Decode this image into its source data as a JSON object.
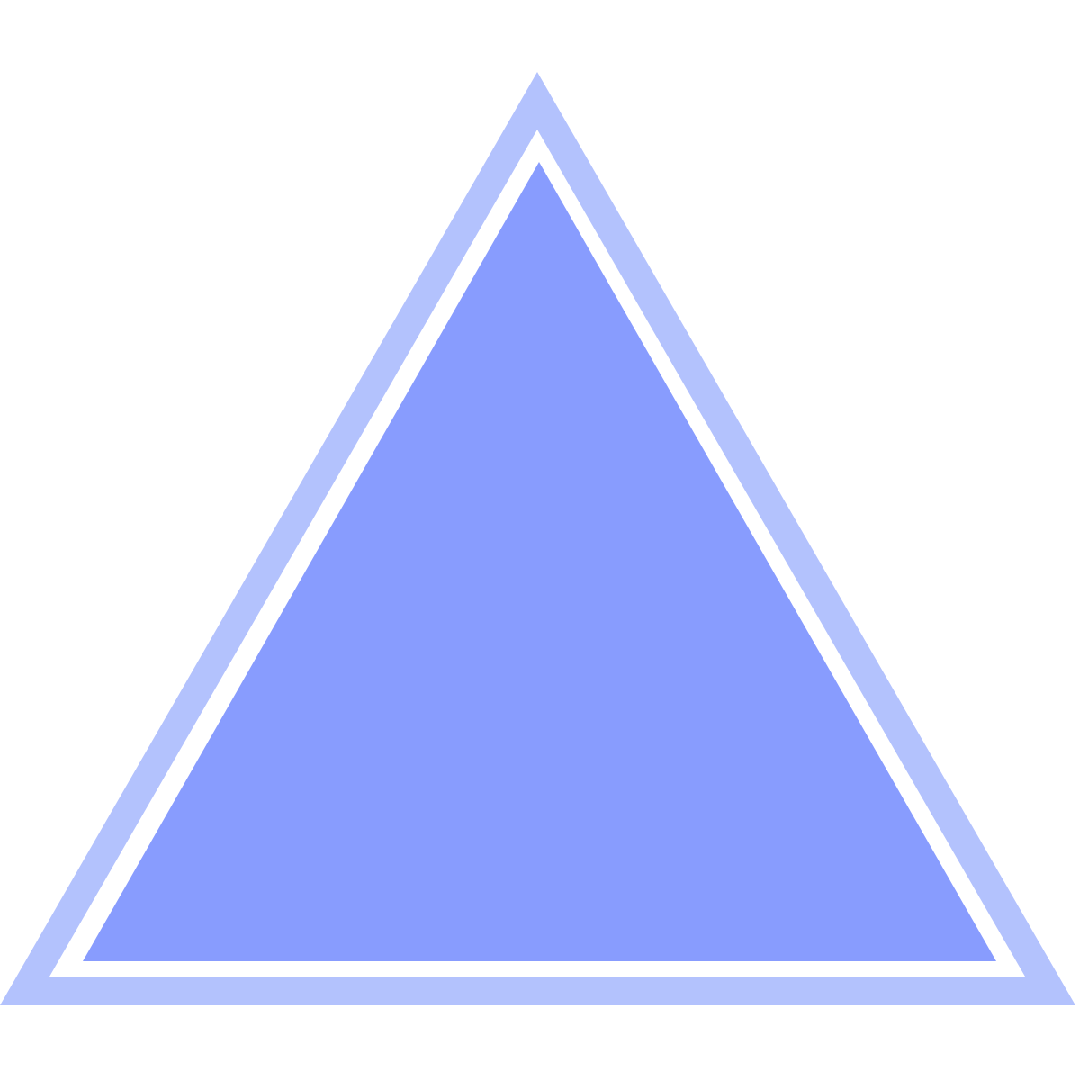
{
  "background_color": "#ffffff",
  "triangle_icon": {
    "icon": "triangle-icon",
    "outer_border_color": "#b3c2fd",
    "gap_color": "#ffffff",
    "fill_color": "#889cfe"
  }
}
